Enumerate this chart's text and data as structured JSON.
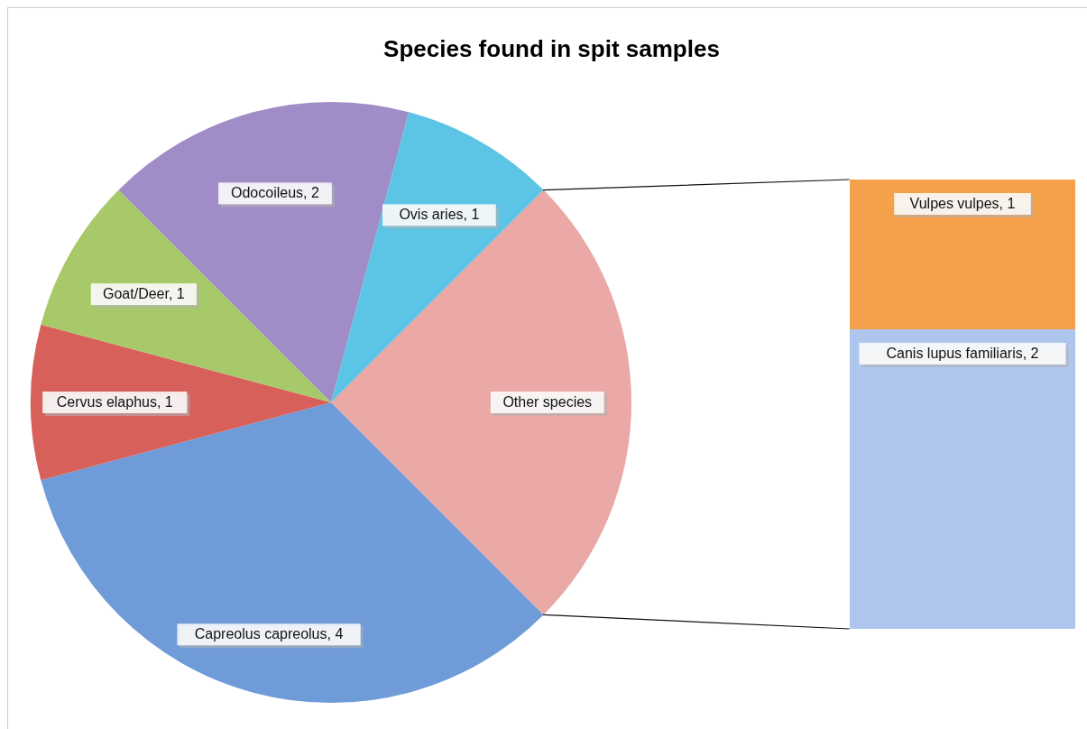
{
  "chart_data": [
    {
      "type": "pie",
      "title": "Species found in spit samples",
      "categories": [
        "Other species",
        "Capreolus capreolus",
        "Cervus elaphus",
        "Goat/Deer",
        "Odocoileus",
        "Ovis aries"
      ],
      "values": [
        3,
        4,
        1,
        1,
        2,
        1
      ],
      "colors": [
        "#eaa8a6",
        "#6f9bd8",
        "#d8605a",
        "#a8c96a",
        "#a08cc6",
        "#5cc4e4"
      ],
      "value_labels": [
        null,
        "4",
        "1",
        "1",
        "2",
        "1"
      ]
    },
    {
      "type": "bar",
      "stacked": true,
      "categories": [
        null
      ],
      "series": [
        {
          "color": "#aec6ee",
          "values": [
            2
          ],
          "value_labels": [
            "Canis lupus familiaris, 2"
          ]
        },
        {
          "color": "#f5a04a",
          "values": [
            1
          ],
          "value_labels": [
            "Vulpes vulpes, 1"
          ]
        }
      ]
    }
  ]
}
